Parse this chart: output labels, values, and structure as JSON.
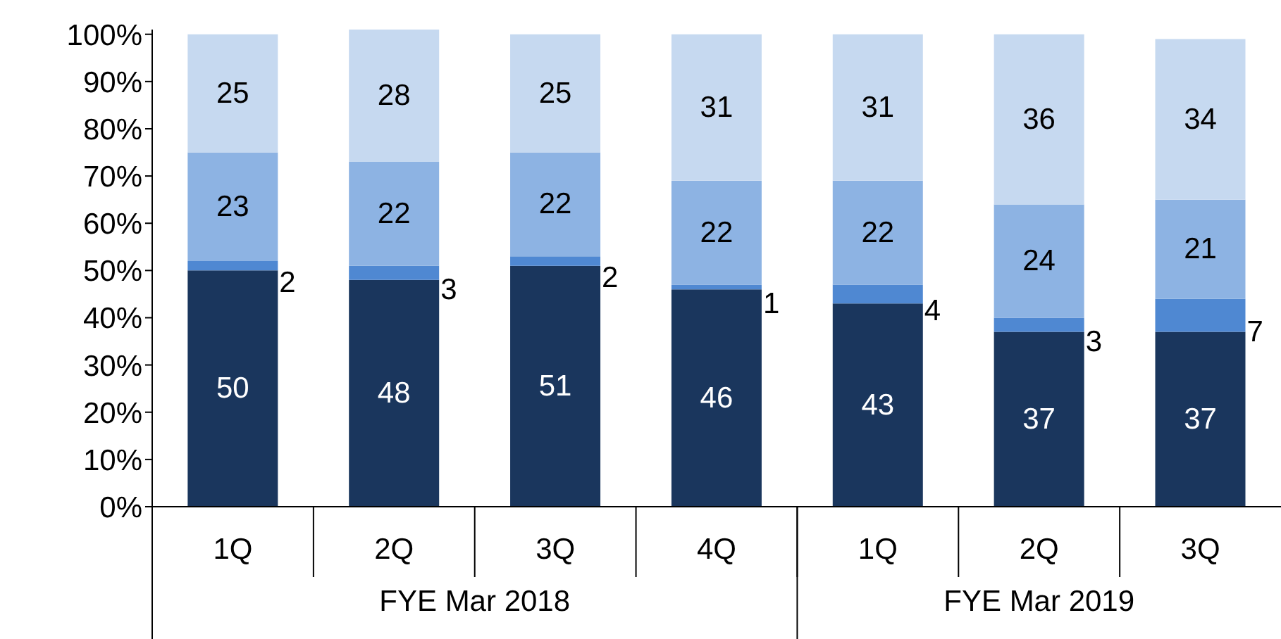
{
  "chart_data": {
    "type": "bar",
    "stacked": true,
    "categories": [
      "1Q",
      "2Q",
      "3Q",
      "4Q",
      "1Q",
      "2Q",
      "3Q"
    ],
    "series": [
      {
        "color": "#1a365d",
        "values": [
          50,
          48,
          51,
          46,
          43,
          37,
          37
        ]
      },
      {
        "color": "#4f88d2",
        "values": [
          2,
          3,
          2,
          1,
          4,
          3,
          7
        ]
      },
      {
        "color": "#8db3e3",
        "values": [
          23,
          22,
          22,
          22,
          22,
          24,
          21
        ]
      },
      {
        "color": "#c6d9f0",
        "values": [
          25,
          28,
          25,
          31,
          31,
          36,
          34
        ]
      }
    ],
    "data_labels": true,
    "ylim": [
      0,
      101
    ],
    "yticks": [
      {
        "value": 0,
        "label": "0%"
      },
      {
        "value": 10,
        "label": "10%"
      },
      {
        "value": 20,
        "label": "20%"
      },
      {
        "value": 30,
        "label": "30%"
      },
      {
        "value": 40,
        "label": "40%"
      },
      {
        "value": 50,
        "label": "50%"
      },
      {
        "value": 60,
        "label": "60%"
      },
      {
        "value": 70,
        "label": "70%"
      },
      {
        "value": 80,
        "label": "80%"
      },
      {
        "value": 90,
        "label": "90%"
      },
      {
        "value": 100,
        "label": "100%"
      }
    ],
    "annotations": [
      "FYE Mar 2018",
      "FYE Mar 2019"
    ],
    "grid": false,
    "legend": false
  }
}
